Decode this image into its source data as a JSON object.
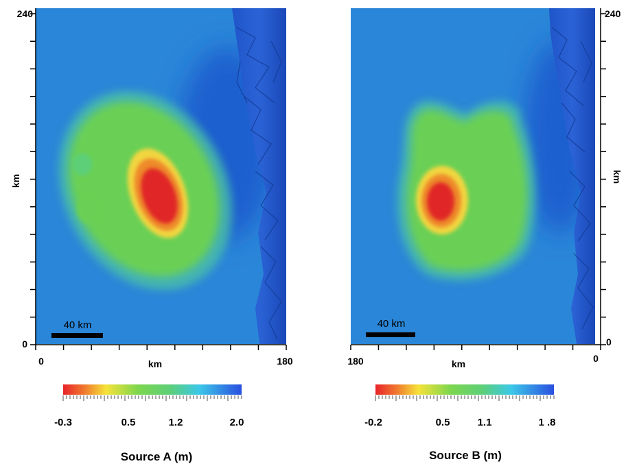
{
  "chart_data": [
    {
      "type": "heatmap",
      "title": "Source A (m)",
      "xlabel": "km",
      "ylabel": "km",
      "xlim": [
        0,
        180
      ],
      "ylim": [
        0,
        240
      ],
      "x_tick_labels": [
        "0",
        "180"
      ],
      "y_tick_labels": [
        "0",
        "240"
      ],
      "scale_bar_label": "40 km",
      "colorbar": {
        "tick_labels": [
          "-0.3",
          "0.5",
          "1.2",
          "2.0"
        ],
        "tick_values": [
          -0.3,
          0.5,
          1.2,
          2.0
        ],
        "colors": [
          "#e8232a",
          "#f6e23a",
          "#6cd45a",
          "#3cc8e8",
          "#2a4fe0"
        ]
      },
      "features": {
        "peak_center_km": [
          87,
          108
        ],
        "peak_value_m": -0.3,
        "background_value_m": 1.4,
        "coast_side": "right"
      }
    },
    {
      "type": "heatmap",
      "title": "Source B (m)",
      "xlabel": "km",
      "ylabel": "km",
      "xlim": [
        180,
        0
      ],
      "ylim": [
        0,
        240
      ],
      "x_tick_labels": [
        "180",
        "0"
      ],
      "y_tick_labels": [
        "0",
        "240"
      ],
      "scale_bar_label": "40 km",
      "colorbar": {
        "tick_labels": [
          "-0.2",
          "0.5",
          "1.1",
          "1 .8"
        ],
        "tick_values": [
          -0.2,
          0.5,
          1.1,
          1.8
        ],
        "colors": [
          "#e8232a",
          "#f6e23a",
          "#6cd45a",
          "#3cc8e8",
          "#2a4fe0"
        ]
      },
      "features": {
        "peak_center_km": [
          122,
          104
        ],
        "peak_value_m": -0.2,
        "background_value_m": 1.4,
        "coast_side": "right"
      }
    }
  ]
}
